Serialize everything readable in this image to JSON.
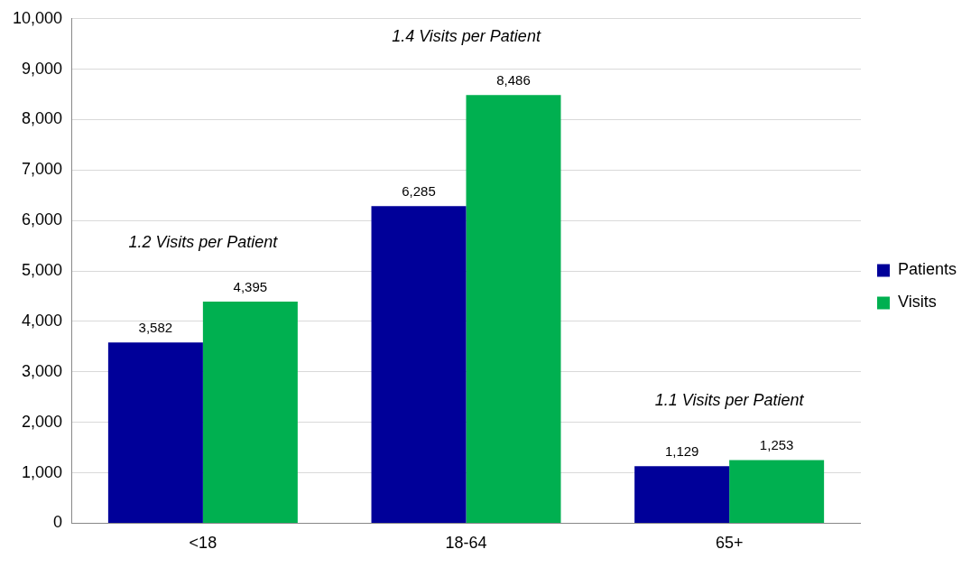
{
  "chart_data": {
    "type": "bar",
    "categories": [
      "<18",
      "18-64",
      "65+"
    ],
    "series": [
      {
        "name": "Patients",
        "color": "#000099",
        "values": [
          3582,
          6285,
          1129
        ],
        "value_labels": [
          "3,582",
          "6,285",
          "1,129"
        ]
      },
      {
        "name": "Visits",
        "color": "#00b050",
        "values": [
          4395,
          8486,
          1253
        ],
        "value_labels": [
          "4,395",
          "8,486",
          "1,253"
        ]
      }
    ],
    "ylim": [
      0,
      10000
    ],
    "yticks": [
      0,
      {
        "value": 1000,
        "label": "1,000"
      },
      {
        "value": 2000,
        "label": "2,000"
      },
      {
        "value": 3000,
        "label": "3,000"
      },
      {
        "value": 4000,
        "label": "4,000"
      },
      {
        "value": 5000,
        "label": "5,000"
      },
      {
        "value": 6000,
        "label": "6,000"
      },
      {
        "value": 7000,
        "label": "7,000"
      },
      {
        "value": 8000,
        "label": "8,000"
      },
      {
        "value": 9000,
        "label": "9,000"
      },
      {
        "value": 10000,
        "label": "10,000"
      }
    ],
    "grid": "y",
    "legend": "right",
    "annotations": [
      "1.2 Visits per Patient",
      "1.4 Visits per Patient",
      "1.1 Visits per Patient"
    ]
  }
}
